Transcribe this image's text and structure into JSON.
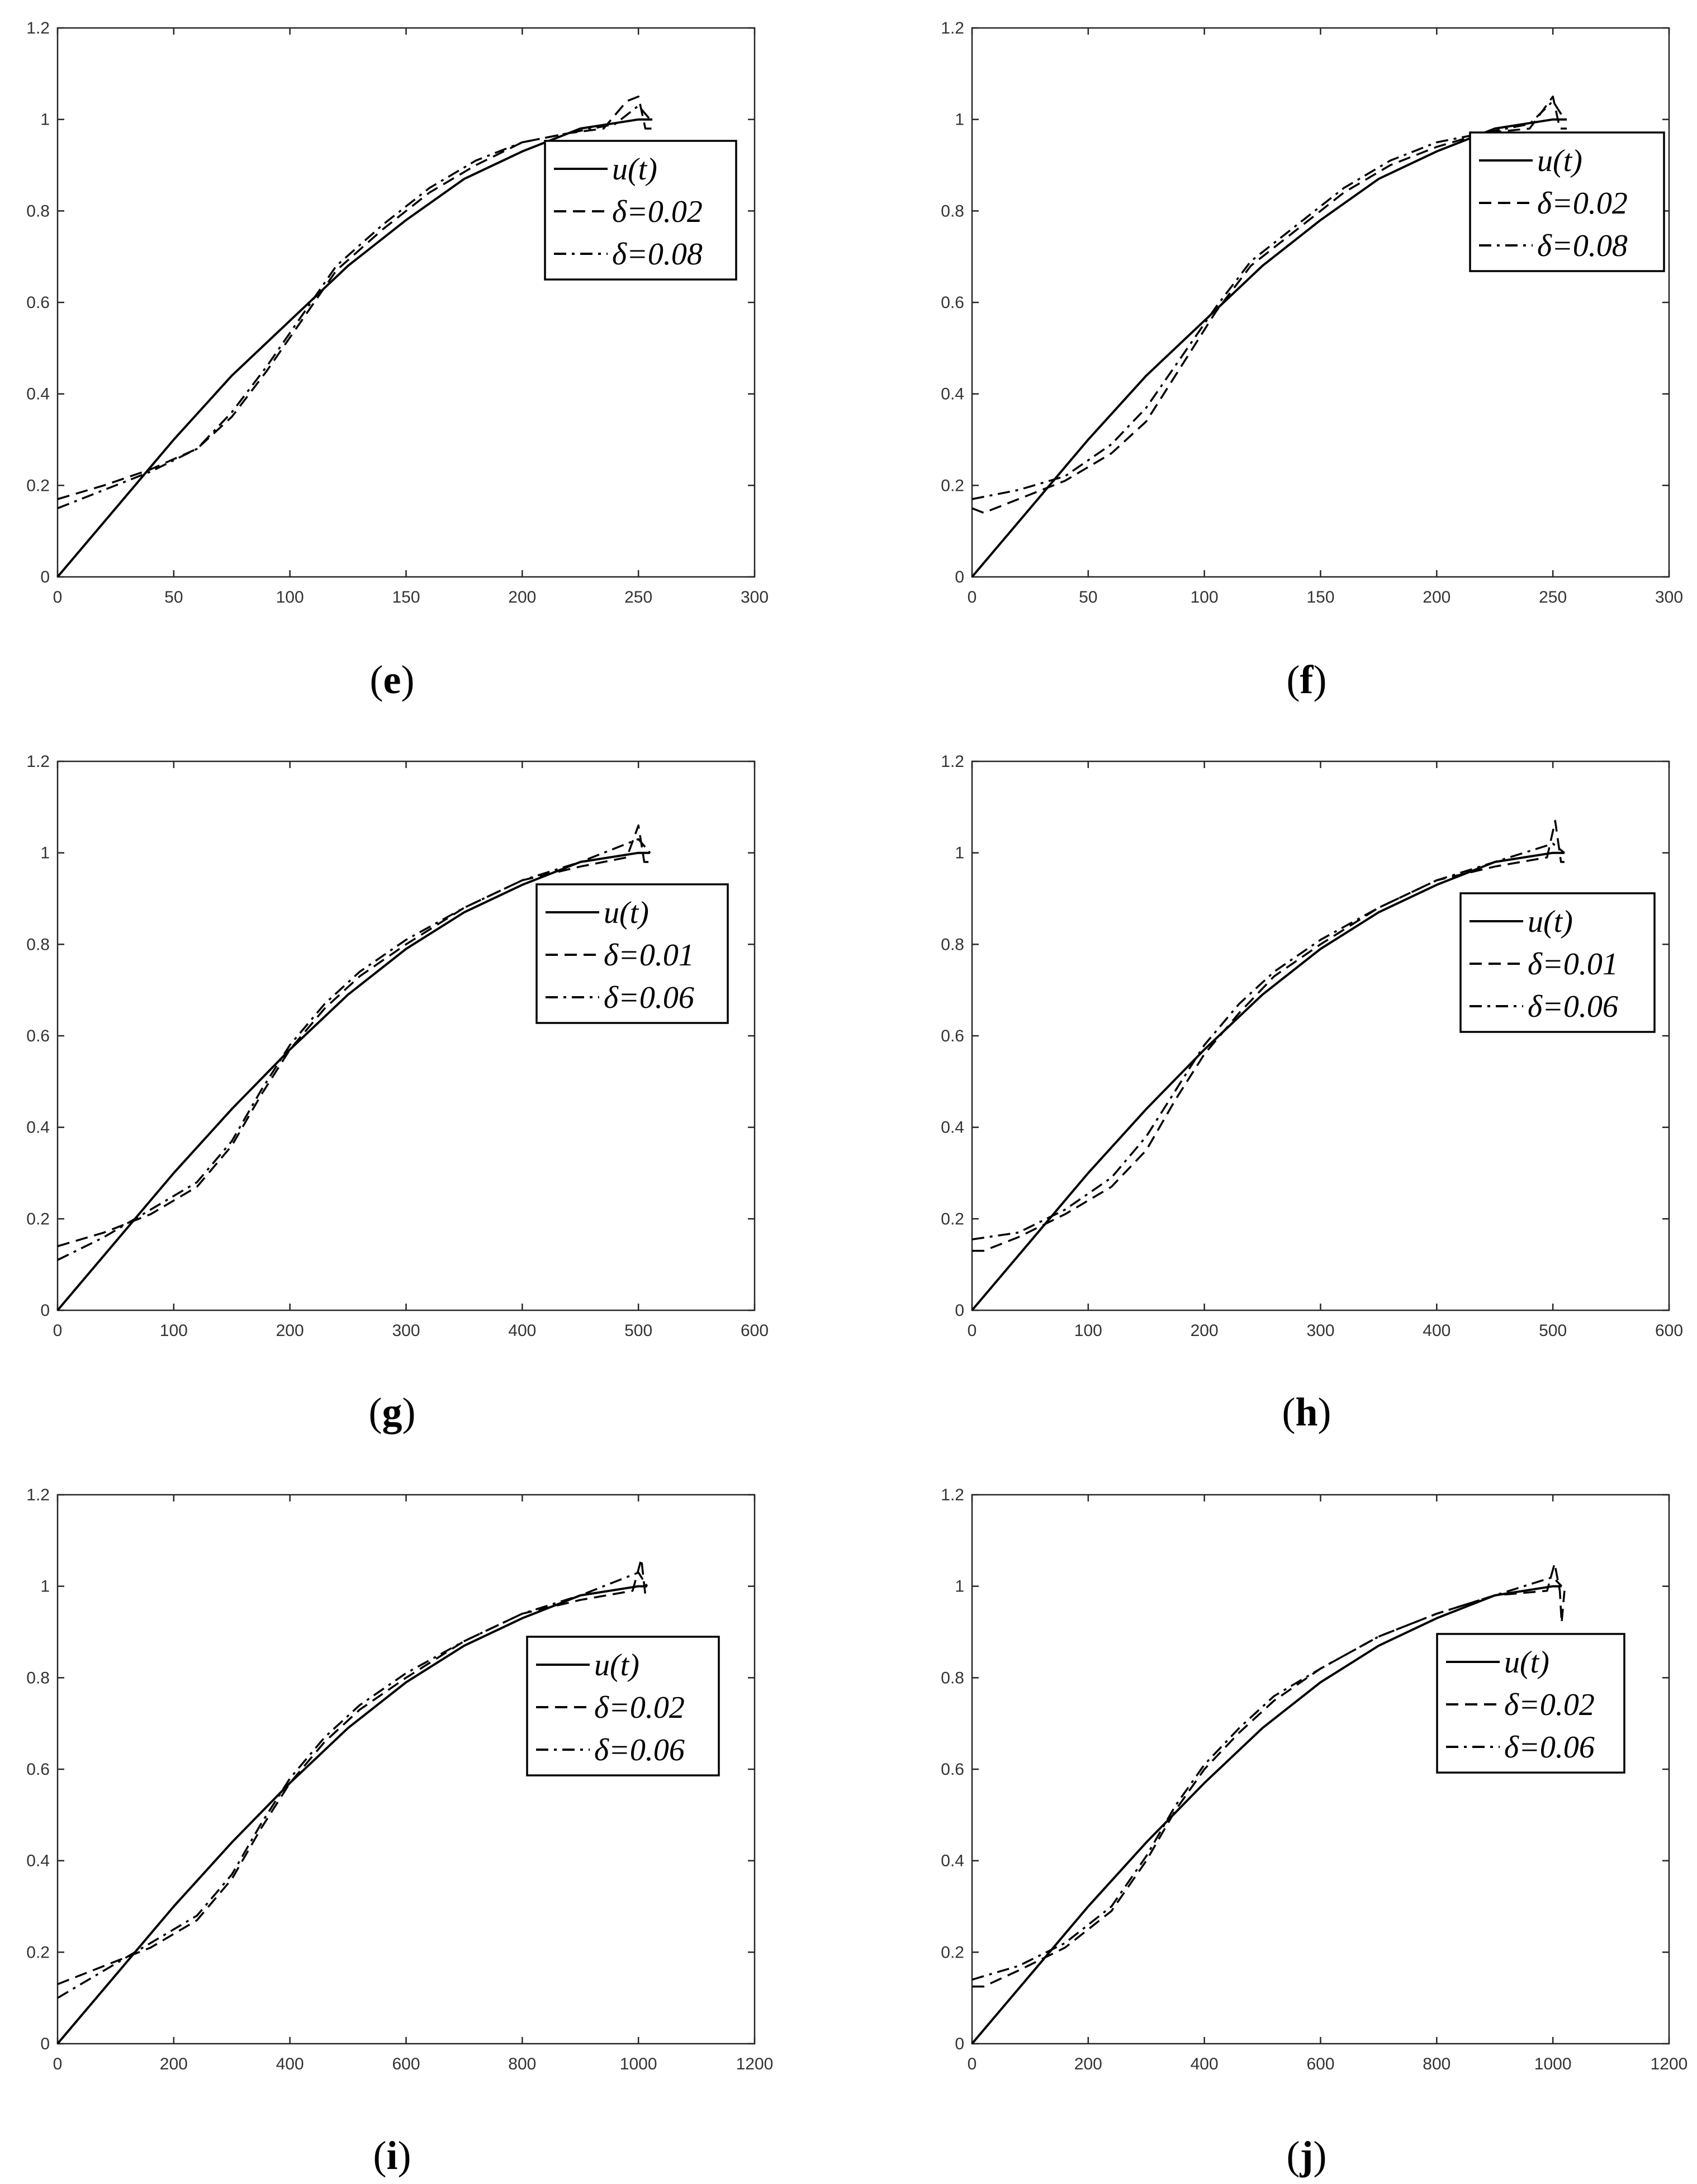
{
  "colors": {
    "line": "#000000",
    "axis": "#262626",
    "tick_text": "#333333",
    "background": "#ffffff"
  },
  "chart_data": [
    {
      "id": "e",
      "type": "line",
      "panel_label": {
        "open": "(",
        "letter": "e",
        "close": ")"
      },
      "xlim": [
        0,
        300
      ],
      "ylim": [
        0,
        1.2
      ],
      "xticks": [
        0,
        50,
        100,
        150,
        200,
        250,
        300
      ],
      "yticks": [
        0,
        0.2,
        0.4,
        0.6,
        0.8,
        1,
        1.2
      ],
      "xtick_labels": [
        "0",
        "50",
        "100",
        "150",
        "200",
        "250",
        "300"
      ],
      "ytick_labels": [
        "0",
        "0.2",
        "0.4",
        "0.6",
        "0.8",
        "1",
        "1.2"
      ],
      "legend": {
        "position": "upper-right",
        "entries": [
          "u(t)",
          "δ=0.02",
          "δ=0.08"
        ]
      },
      "series": [
        {
          "name": "u(t)",
          "style": "solid",
          "x": [
            0,
            25,
            50,
            75,
            100,
            125,
            150,
            175,
            200,
            225,
            250,
            256
          ],
          "y": [
            0,
            0.15,
            0.3,
            0.44,
            0.56,
            0.68,
            0.78,
            0.87,
            0.93,
            0.98,
            1.0,
            1.0
          ]
        },
        {
          "name": "δ=0.02",
          "style": "dashed",
          "x": [
            0,
            20,
            40,
            60,
            75,
            90,
            105,
            120,
            140,
            160,
            180,
            200,
            220,
            235,
            245,
            250,
            253,
            256
          ],
          "y": [
            0.17,
            0.2,
            0.235,
            0.28,
            0.35,
            0.45,
            0.56,
            0.67,
            0.76,
            0.84,
            0.9,
            0.95,
            0.97,
            0.98,
            1.04,
            1.05,
            0.98,
            0.98
          ]
        },
        {
          "name": "δ=0.08",
          "style": "dashdot",
          "x": [
            0,
            20,
            40,
            60,
            75,
            90,
            105,
            120,
            140,
            160,
            180,
            200,
            220,
            240,
            250,
            255
          ],
          "y": [
            0.15,
            0.19,
            0.23,
            0.28,
            0.36,
            0.46,
            0.57,
            0.68,
            0.77,
            0.85,
            0.91,
            0.95,
            0.97,
            0.99,
            1.03,
            1.0
          ]
        }
      ]
    },
    {
      "id": "f",
      "type": "line",
      "panel_label": {
        "open": "(",
        "letter": "f",
        "close": ")"
      },
      "xlim": [
        0,
        300
      ],
      "ylim": [
        0,
        1.2
      ],
      "xticks": [
        0,
        50,
        100,
        150,
        200,
        250,
        300
      ],
      "yticks": [
        0,
        0.2,
        0.4,
        0.6,
        0.8,
        1,
        1.2
      ],
      "xtick_labels": [
        "0",
        "50",
        "100",
        "150",
        "200",
        "250",
        "300"
      ],
      "ytick_labels": [
        "0",
        "0.2",
        "0.4",
        "0.6",
        "0.8",
        "1",
        "1.2"
      ],
      "legend": {
        "position": "upper-right",
        "entries": [
          "u(t)",
          "δ=0.02",
          "δ=0.08"
        ]
      },
      "series": [
        {
          "name": "u(t)",
          "style": "solid",
          "x": [
            0,
            25,
            50,
            75,
            100,
            125,
            150,
            175,
            200,
            225,
            250,
            256
          ],
          "y": [
            0,
            0.15,
            0.3,
            0.44,
            0.56,
            0.68,
            0.78,
            0.87,
            0.93,
            0.98,
            1.0,
            1.0
          ]
        },
        {
          "name": "δ=0.02",
          "style": "dashed",
          "x": [
            0,
            5,
            20,
            40,
            60,
            75,
            90,
            105,
            120,
            140,
            160,
            180,
            200,
            220,
            240,
            250,
            253,
            256
          ],
          "y": [
            0.15,
            0.14,
            0.17,
            0.21,
            0.27,
            0.34,
            0.46,
            0.58,
            0.68,
            0.76,
            0.84,
            0.9,
            0.94,
            0.97,
            0.98,
            1.05,
            0.98,
            0.98
          ]
        },
        {
          "name": "δ=0.08",
          "style": "dashdot",
          "x": [
            0,
            20,
            40,
            60,
            75,
            90,
            105,
            120,
            140,
            160,
            180,
            200,
            220,
            240,
            250,
            255
          ],
          "y": [
            0.17,
            0.19,
            0.22,
            0.29,
            0.37,
            0.48,
            0.59,
            0.69,
            0.77,
            0.85,
            0.91,
            0.95,
            0.97,
            0.99,
            1.04,
            1.0
          ]
        }
      ]
    },
    {
      "id": "g",
      "type": "line",
      "panel_label": {
        "open": "(",
        "letter": "g",
        "close": ")"
      },
      "xlim": [
        0,
        600
      ],
      "ylim": [
        0,
        1.2
      ],
      "xticks": [
        0,
        100,
        200,
        300,
        400,
        500,
        600
      ],
      "yticks": [
        0,
        0.2,
        0.4,
        0.6,
        0.8,
        1,
        1.2
      ],
      "xtick_labels": [
        "0",
        "100",
        "200",
        "300",
        "400",
        "500",
        "600"
      ],
      "ytick_labels": [
        "0",
        "0.2",
        "0.4",
        "0.6",
        "0.8",
        "1",
        "1.2"
      ],
      "legend": {
        "position": "upper-right",
        "entries": [
          "u(t)",
          "δ=0.01",
          "δ=0.06"
        ]
      },
      "series": [
        {
          "name": "u(t)",
          "style": "solid",
          "x": [
            0,
            50,
            100,
            150,
            200,
            250,
            300,
            350,
            400,
            450,
            500,
            510
          ],
          "y": [
            0,
            0.15,
            0.3,
            0.44,
            0.57,
            0.69,
            0.79,
            0.87,
            0.93,
            0.98,
            1.0,
            1.0
          ]
        },
        {
          "name": "δ=0.01",
          "style": "dashed",
          "x": [
            0,
            40,
            80,
            120,
            150,
            175,
            200,
            230,
            260,
            300,
            350,
            400,
            450,
            490,
            500,
            505,
            510
          ],
          "y": [
            0.14,
            0.17,
            0.21,
            0.27,
            0.36,
            0.47,
            0.57,
            0.66,
            0.73,
            0.8,
            0.88,
            0.94,
            0.97,
            0.99,
            1.06,
            0.98,
            0.98
          ]
        },
        {
          "name": "δ=0.06",
          "style": "dashdot",
          "x": [
            0,
            40,
            80,
            120,
            150,
            175,
            200,
            230,
            260,
            300,
            350,
            400,
            450,
            500,
            510
          ],
          "y": [
            0.11,
            0.16,
            0.22,
            0.28,
            0.37,
            0.48,
            0.58,
            0.67,
            0.74,
            0.81,
            0.88,
            0.94,
            0.98,
            1.03,
            1.0
          ]
        }
      ]
    },
    {
      "id": "h",
      "type": "line",
      "panel_label": {
        "open": "(",
        "letter": "h",
        "close": ")"
      },
      "xlim": [
        0,
        600
      ],
      "ylim": [
        0,
        1.2
      ],
      "xticks": [
        0,
        100,
        200,
        300,
        400,
        500,
        600
      ],
      "yticks": [
        0,
        0.2,
        0.4,
        0.6,
        0.8,
        1,
        1.2
      ],
      "xtick_labels": [
        "0",
        "100",
        "200",
        "300",
        "400",
        "500",
        "600"
      ],
      "ytick_labels": [
        "0",
        "0.2",
        "0.4",
        "0.6",
        "0.8",
        "1",
        "1.2"
      ],
      "legend": {
        "position": "upper-right",
        "entries": [
          "u(t)",
          "δ=0.01",
          "δ=0.06"
        ]
      },
      "series": [
        {
          "name": "u(t)",
          "style": "solid",
          "x": [
            0,
            50,
            100,
            150,
            200,
            250,
            300,
            350,
            400,
            450,
            500,
            510
          ],
          "y": [
            0,
            0.15,
            0.3,
            0.44,
            0.57,
            0.69,
            0.79,
            0.87,
            0.93,
            0.98,
            1.0,
            1.0
          ]
        },
        {
          "name": "δ=0.01",
          "style": "dashed",
          "x": [
            0,
            10,
            40,
            80,
            120,
            150,
            175,
            200,
            230,
            260,
            300,
            350,
            400,
            450,
            495,
            502,
            507,
            510
          ],
          "y": [
            0.13,
            0.13,
            0.16,
            0.21,
            0.27,
            0.35,
            0.46,
            0.56,
            0.65,
            0.73,
            0.8,
            0.88,
            0.94,
            0.97,
            0.99,
            1.07,
            0.98,
            0.98
          ]
        },
        {
          "name": "δ=0.06",
          "style": "dashdot",
          "x": [
            0,
            40,
            80,
            120,
            150,
            175,
            200,
            230,
            260,
            300,
            350,
            400,
            450,
            500,
            510
          ],
          "y": [
            0.155,
            0.17,
            0.22,
            0.29,
            0.38,
            0.48,
            0.58,
            0.67,
            0.74,
            0.81,
            0.88,
            0.94,
            0.98,
            1.02,
            1.0
          ]
        }
      ]
    },
    {
      "id": "i",
      "type": "line",
      "panel_label": {
        "open": "(",
        "letter": "i",
        "close": ")"
      },
      "xlim": [
        0,
        1200
      ],
      "ylim": [
        0,
        1.2
      ],
      "xticks": [
        0,
        200,
        400,
        600,
        800,
        1000,
        1200
      ],
      "yticks": [
        0,
        0.2,
        0.4,
        0.6,
        0.8,
        1,
        1.2
      ],
      "xtick_labels": [
        "0",
        "200",
        "400",
        "600",
        "800",
        "1000",
        "1200"
      ],
      "ytick_labels": [
        "0",
        "0.2",
        "0.4",
        "0.6",
        "0.8",
        "1",
        "1.2"
      ],
      "legend": {
        "position": "upper-right",
        "entries": [
          "u(t)",
          "δ=0.02",
          "δ=0.06"
        ]
      },
      "series": [
        {
          "name": "u(t)",
          "style": "solid",
          "x": [
            0,
            100,
            200,
            300,
            400,
            500,
            600,
            700,
            800,
            900,
            1000,
            1015
          ],
          "y": [
            0,
            0.15,
            0.3,
            0.44,
            0.57,
            0.69,
            0.79,
            0.87,
            0.93,
            0.98,
            1.0,
            1.0
          ]
        },
        {
          "name": "δ=0.02",
          "style": "dashed",
          "x": [
            0,
            80,
            160,
            240,
            300,
            350,
            400,
            460,
            520,
            600,
            700,
            800,
            900,
            990,
            1005,
            1012,
            1020
          ],
          "y": [
            0.13,
            0.17,
            0.21,
            0.27,
            0.36,
            0.47,
            0.57,
            0.66,
            0.73,
            0.8,
            0.88,
            0.94,
            0.97,
            0.99,
            1.06,
            0.98,
            0.98
          ]
        },
        {
          "name": "δ=0.06",
          "style": "dashdot",
          "x": [
            0,
            80,
            160,
            240,
            300,
            350,
            400,
            460,
            520,
            600,
            700,
            800,
            900,
            1000,
            1015
          ],
          "y": [
            0.1,
            0.16,
            0.22,
            0.28,
            0.37,
            0.48,
            0.58,
            0.67,
            0.74,
            0.81,
            0.88,
            0.94,
            0.98,
            1.03,
            1.0
          ]
        }
      ]
    },
    {
      "id": "j",
      "type": "line",
      "panel_label": {
        "open": "(",
        "letter": "j",
        "close": ")"
      },
      "xlim": [
        0,
        1200
      ],
      "ylim": [
        0,
        1.2
      ],
      "xticks": [
        0,
        200,
        400,
        600,
        800,
        1000,
        1200
      ],
      "yticks": [
        0,
        0.2,
        0.4,
        0.6,
        0.8,
        1,
        1.2
      ],
      "xtick_labels": [
        "0",
        "200",
        "400",
        "600",
        "800",
        "1000",
        "1200"
      ],
      "ytick_labels": [
        "0",
        "0.2",
        "0.4",
        "0.6",
        "0.8",
        "1",
        "1.2"
      ],
      "legend": {
        "position": "upper-right",
        "entries": [
          "u(t)",
          "δ=0.02",
          "δ=0.06"
        ]
      },
      "series": [
        {
          "name": "u(t)",
          "style": "solid",
          "x": [
            0,
            100,
            200,
            300,
            400,
            500,
            600,
            700,
            800,
            900,
            1000,
            1015
          ],
          "y": [
            0,
            0.15,
            0.3,
            0.44,
            0.57,
            0.69,
            0.79,
            0.87,
            0.93,
            0.98,
            1.0,
            1.0
          ]
        },
        {
          "name": "δ=0.02",
          "style": "dashed",
          "x": [
            0,
            20,
            80,
            160,
            240,
            300,
            350,
            400,
            460,
            520,
            600,
            700,
            800,
            900,
            990,
            1003,
            1012,
            1015,
            1020
          ],
          "y": [
            0.125,
            0.125,
            0.16,
            0.21,
            0.29,
            0.4,
            0.51,
            0.6,
            0.68,
            0.75,
            0.82,
            0.89,
            0.94,
            0.98,
            0.99,
            1.05,
            0.99,
            0.92,
            0.99
          ]
        },
        {
          "name": "δ=0.06",
          "style": "dashdot",
          "x": [
            0,
            80,
            160,
            240,
            300,
            350,
            400,
            460,
            520,
            600,
            700,
            800,
            900,
            1000,
            1015
          ],
          "y": [
            0.14,
            0.17,
            0.22,
            0.3,
            0.41,
            0.52,
            0.61,
            0.69,
            0.76,
            0.82,
            0.89,
            0.94,
            0.98,
            1.02,
            1.0
          ]
        }
      ]
    }
  ]
}
